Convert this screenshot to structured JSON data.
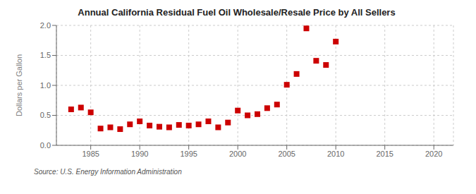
{
  "chart_data": {
    "type": "scatter",
    "title": "Annual California Residual Fuel Oil Wholesale/Resale Price by All Sellers",
    "ylabel": "Dollars per Gallon",
    "source": "Source: U.S. Energy Information Administration",
    "x": [
      1983,
      1984,
      1985,
      1986,
      1987,
      1988,
      1989,
      1990,
      1991,
      1992,
      1993,
      1994,
      1995,
      1996,
      1997,
      1998,
      1999,
      2000,
      2001,
      2002,
      2003,
      2004,
      2005,
      2006,
      2007,
      2008,
      2009,
      2010
    ],
    "values": [
      0.6,
      0.63,
      0.55,
      0.28,
      0.3,
      0.27,
      0.35,
      0.4,
      0.33,
      0.31,
      0.3,
      0.34,
      0.33,
      0.35,
      0.4,
      0.3,
      0.38,
      0.58,
      0.5,
      0.52,
      0.62,
      0.68,
      1.01,
      1.19,
      1.95,
      1.41,
      1.34,
      1.73
    ],
    "color": "#cc0000",
    "marker": "square",
    "grid": true,
    "xlim": [
      1981.5,
      2022
    ],
    "ylim": [
      0.0,
      2.0
    ],
    "xticks": [
      1985,
      1990,
      1995,
      2000,
      2005,
      2010,
      2015,
      2020
    ],
    "yticks": [
      {
        "value": 0.0,
        "label": "0.0"
      },
      {
        "value": 0.5,
        "label": "0.5"
      },
      {
        "value": 1.0,
        "label": "1.0"
      },
      {
        "value": 1.5,
        "label": "1.5"
      },
      {
        "value": 2.0,
        "label": "2.0"
      }
    ]
  }
}
